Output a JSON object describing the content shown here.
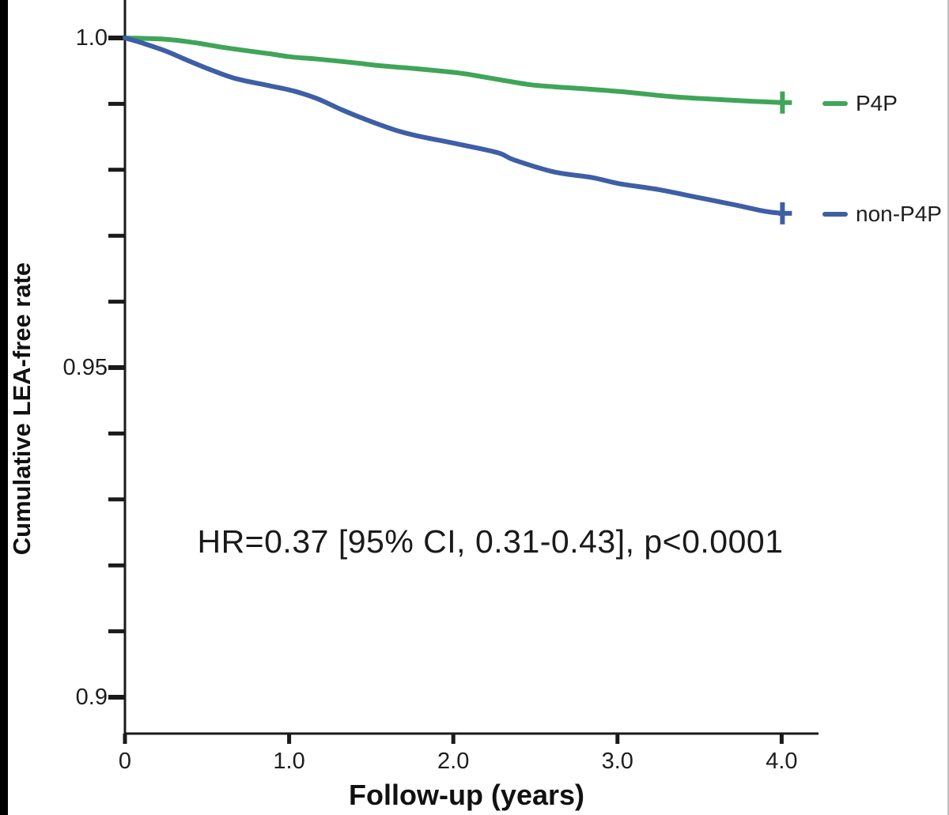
{
  "figure": {
    "background": "#ffffff",
    "crop_bar_color": "#000000"
  },
  "colors": {
    "p4p": "#3fa558",
    "non_p4p": "#3e5ea6",
    "axis": "#1a1a1a",
    "text": "#1d1d1d"
  },
  "legend": {
    "items": [
      {
        "label": "P4P",
        "color": "#3fa558"
      },
      {
        "label": "non-P4P",
        "color": "#3e5ea6"
      }
    ]
  },
  "chart_data": {
    "type": "line",
    "subtype": "kaplan-meier-survival",
    "title": "",
    "xlabel": "Follow-up (years)",
    "ylabel": "Cumulative LEA-free rate",
    "annotation": "HR=0.37 [95% CI, 0.31-0.43], p<0.0001",
    "xlim": [
      0,
      4.22
    ],
    "ylim": [
      0.894,
      1.006
    ],
    "grid": false,
    "legend_position": "right-of-curve-ends",
    "x_ticks": [
      {
        "value": 0,
        "label": "0"
      },
      {
        "value": 1,
        "label": "1.0"
      },
      {
        "value": 2,
        "label": "2.0"
      },
      {
        "value": 3,
        "label": "3.0"
      },
      {
        "value": 4,
        "label": "4.0"
      }
    ],
    "y_major_ticks": [
      {
        "value": 1.0,
        "label": "1.0"
      },
      {
        "value": 0.95,
        "label": "0.95"
      },
      {
        "value": 0.9,
        "label": "0.9"
      }
    ],
    "y_minor_ticks": [
      0.99,
      0.98,
      0.97,
      0.96,
      0.94,
      0.93,
      0.92,
      0.91
    ],
    "series": [
      {
        "name": "P4P",
        "color": "#3fa558",
        "censored_at_end": true,
        "x": [
          0,
          0.25,
          0.42,
          0.59,
          0.73,
          0.88,
          1.02,
          1.17,
          1.41,
          1.55,
          1.79,
          2.03,
          2.18,
          2.32,
          2.47,
          2.61,
          2.85,
          3.09,
          3.33,
          3.66,
          3.82,
          4.0
        ],
        "y": [
          1.0,
          0.9998,
          0.9993,
          0.9986,
          0.9981,
          0.9976,
          0.9971,
          0.9968,
          0.9962,
          0.9958,
          0.9953,
          0.9947,
          0.9941,
          0.9935,
          0.9929,
          0.9926,
          0.9922,
          0.9917,
          0.9911,
          0.9906,
          0.9904,
          0.9902
        ]
      },
      {
        "name": "non-P4P",
        "color": "#3e5ea6",
        "censored_at_end": true,
        "x": [
          0,
          0.11,
          0.25,
          0.4,
          0.54,
          0.68,
          0.85,
          1.02,
          1.17,
          1.33,
          1.48,
          1.65,
          1.79,
          2.03,
          2.27,
          2.37,
          2.61,
          2.85,
          3.01,
          3.25,
          3.49,
          3.73,
          3.9,
          4.0
        ],
        "y": [
          1.0,
          0.9992,
          0.998,
          0.9964,
          0.995,
          0.9938,
          0.9929,
          0.992,
          0.9908,
          0.989,
          0.9875,
          0.986,
          0.9851,
          0.9839,
          0.9826,
          0.9815,
          0.9797,
          0.9788,
          0.9779,
          0.977,
          0.9758,
          0.9746,
          0.9737,
          0.9734
        ]
      }
    ]
  }
}
